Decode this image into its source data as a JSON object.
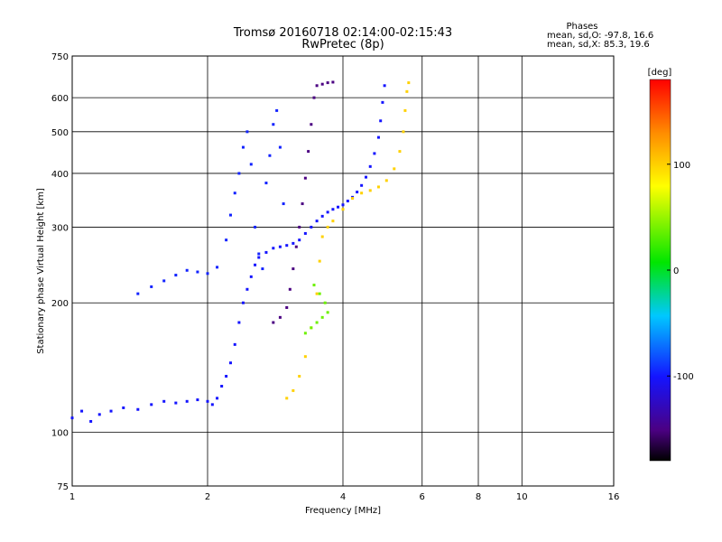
{
  "chart_data": {
    "type": "scatter",
    "title": "Tromsø 20160718 02:14:00-02:15:43",
    "subtitle": "RwPretec (8p)",
    "stats": {
      "title": "Phases",
      "line1": "mean, sd,O: -97.8, 16.6",
      "line2": "mean, sd,X:  85.3, 19.6"
    },
    "xlabel": "Frequency [MHz]",
    "ylabel": "Stationary phase Virtual Height [km]",
    "x_scale": "log",
    "y_scale": "log",
    "xlim": [
      1,
      16
    ],
    "ylim": [
      75,
      750
    ],
    "x_ticks": [
      1,
      2,
      4,
      6,
      8,
      10,
      16
    ],
    "x_tick_labels": [
      "1",
      "2",
      "4",
      "6",
      "8",
      "10",
      "16"
    ],
    "y_ticks": [
      75,
      100,
      200,
      300,
      400,
      500,
      600,
      750
    ],
    "y_tick_labels": [
      "75",
      "100",
      "200",
      "300",
      "400",
      "500",
      "600",
      "750"
    ],
    "grid": true,
    "colorbar": {
      "label": "[deg]",
      "range": [
        -180,
        180
      ],
      "ticks": [
        100,
        0,
        -100
      ],
      "tick_labels": [
        "100",
        "0",
        "-100"
      ]
    },
    "series": [
      {
        "trace": "O-mode F2 (blue)",
        "phase": -100,
        "points": [
          [
            1.0,
            108
          ],
          [
            1.05,
            112
          ],
          [
            1.1,
            106
          ],
          [
            1.15,
            110
          ],
          [
            1.22,
            112
          ],
          [
            1.3,
            114
          ],
          [
            1.4,
            113
          ],
          [
            1.5,
            116
          ],
          [
            1.6,
            118
          ],
          [
            1.7,
            117
          ],
          [
            1.8,
            118
          ],
          [
            1.9,
            119
          ],
          [
            2.0,
            118
          ],
          [
            2.05,
            116
          ],
          [
            2.1,
            120
          ],
          [
            2.15,
            128
          ],
          [
            2.2,
            135
          ],
          [
            2.25,
            145
          ],
          [
            2.3,
            160
          ],
          [
            2.35,
            180
          ],
          [
            2.4,
            200
          ],
          [
            2.45,
            215
          ],
          [
            2.5,
            230
          ],
          [
            2.55,
            245
          ],
          [
            2.6,
            255
          ],
          [
            2.7,
            262
          ],
          [
            2.8,
            268
          ],
          [
            2.9,
            270
          ],
          [
            3.0,
            272
          ],
          [
            3.1,
            275
          ],
          [
            3.2,
            280
          ],
          [
            3.3,
            290
          ],
          [
            3.4,
            300
          ],
          [
            3.5,
            310
          ],
          [
            3.6,
            318
          ],
          [
            3.7,
            325
          ],
          [
            3.8,
            330
          ],
          [
            3.9,
            334
          ],
          [
            4.0,
            338
          ],
          [
            4.1,
            345
          ],
          [
            4.2,
            352
          ],
          [
            4.3,
            362
          ],
          [
            4.4,
            375
          ],
          [
            4.5,
            392
          ],
          [
            4.6,
            415
          ],
          [
            4.7,
            445
          ],
          [
            4.8,
            485
          ],
          [
            4.85,
            530
          ],
          [
            4.9,
            585
          ],
          [
            4.95,
            640
          ]
        ]
      },
      {
        "trace": "Blue scatter cluster",
        "phase": -95,
        "points": [
          [
            1.4,
            210
          ],
          [
            1.5,
            218
          ],
          [
            1.6,
            225
          ],
          [
            1.7,
            232
          ],
          [
            1.8,
            238
          ],
          [
            1.9,
            236
          ],
          [
            2.0,
            234
          ],
          [
            2.1,
            242
          ],
          [
            2.2,
            280
          ],
          [
            2.25,
            320
          ],
          [
            2.3,
            360
          ],
          [
            2.35,
            400
          ],
          [
            2.4,
            460
          ],
          [
            2.45,
            500
          ],
          [
            2.5,
            420
          ],
          [
            2.55,
            300
          ],
          [
            2.6,
            260
          ],
          [
            2.65,
            240
          ],
          [
            2.7,
            380
          ],
          [
            2.75,
            440
          ],
          [
            2.8,
            520
          ],
          [
            2.85,
            560
          ],
          [
            2.9,
            460
          ],
          [
            2.95,
            340
          ]
        ]
      },
      {
        "trace": "Purple trace",
        "phase": -150,
        "points": [
          [
            2.8,
            180
          ],
          [
            2.9,
            185
          ],
          [
            3.0,
            195
          ],
          [
            3.05,
            215
          ],
          [
            3.1,
            240
          ],
          [
            3.15,
            270
          ],
          [
            3.2,
            300
          ],
          [
            3.25,
            340
          ],
          [
            3.3,
            390
          ],
          [
            3.35,
            450
          ],
          [
            3.4,
            520
          ],
          [
            3.45,
            600
          ],
          [
            3.5,
            640
          ],
          [
            3.6,
            645
          ],
          [
            3.7,
            650
          ],
          [
            3.8,
            652
          ]
        ]
      },
      {
        "trace": "X-mode (yellow-orange)",
        "phase": 100,
        "points": [
          [
            3.0,
            120
          ],
          [
            3.1,
            125
          ],
          [
            3.2,
            135
          ],
          [
            3.3,
            150
          ],
          [
            3.4,
            175
          ],
          [
            3.5,
            210
          ],
          [
            3.55,
            250
          ],
          [
            3.6,
            285
          ],
          [
            3.7,
            300
          ],
          [
            3.8,
            310
          ],
          [
            4.0,
            330
          ],
          [
            4.2,
            350
          ],
          [
            4.4,
            360
          ],
          [
            4.6,
            365
          ],
          [
            4.8,
            372
          ],
          [
            5.0,
            385
          ],
          [
            5.2,
            410
          ],
          [
            5.35,
            450
          ],
          [
            5.45,
            500
          ],
          [
            5.5,
            560
          ],
          [
            5.55,
            620
          ],
          [
            5.6,
            650
          ]
        ]
      },
      {
        "trace": "Green cluster",
        "phase": 40,
        "points": [
          [
            3.3,
            170
          ],
          [
            3.4,
            175
          ],
          [
            3.5,
            180
          ],
          [
            3.6,
            185
          ],
          [
            3.7,
            190
          ],
          [
            3.65,
            200
          ],
          [
            3.55,
            210
          ],
          [
            3.45,
            220
          ]
        ]
      }
    ]
  }
}
